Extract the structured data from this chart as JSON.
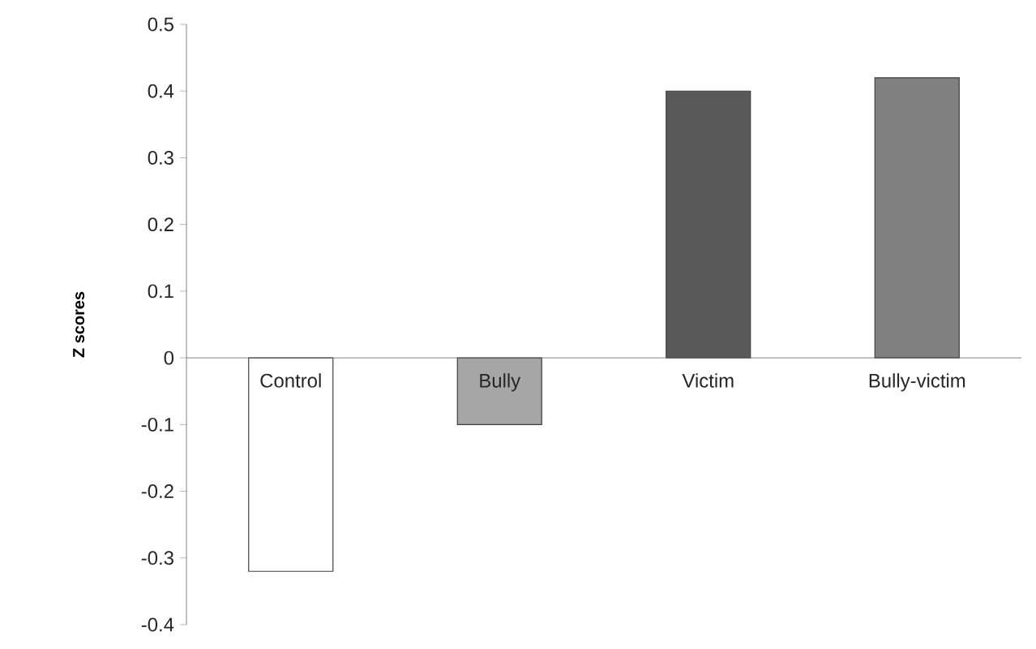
{
  "chart_data": {
    "type": "bar",
    "ylabel": "Z scores",
    "categories": [
      "Control",
      "Bully",
      "Victim",
      "Bully-victim"
    ],
    "values": [
      -0.32,
      -0.1,
      0.4,
      0.42
    ],
    "colors": [
      "#ffffff",
      "#a6a6a6",
      "#595959",
      "#808080"
    ],
    "ylim": [
      -0.4,
      0.5
    ],
    "yticks": [
      -0.4,
      -0.3,
      -0.2,
      -0.1,
      0,
      0.1,
      0.2,
      0.3,
      0.4,
      0.5
    ],
    "grid": false
  }
}
